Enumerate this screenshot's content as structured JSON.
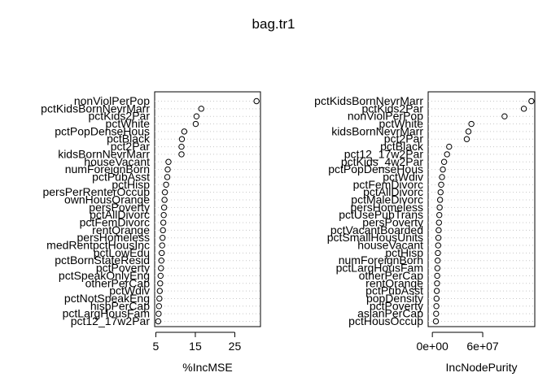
{
  "title": "bag.tr1",
  "chart_data": [
    {
      "type": "dotchart",
      "xlabel": "%IncMSE",
      "xlim": [
        4.7,
        31.5
      ],
      "xticks": [
        5,
        15,
        25
      ],
      "tick_labels": [
        "5",
        "15",
        "25"
      ],
      "grid": true,
      "categories": [
        "nonViolPerPop",
        "pctKidsBornNevrMarr",
        "pctKids2Par",
        "pctWhite",
        "pctPopDenseHous",
        "pctBlack",
        "pct2Par",
        "kidsBornNevrMarr",
        "houseVacant",
        "numForeignBorn",
        "pctPubAsst",
        "pctHisp",
        "persPerRenterOccup",
        "ownHousQrange",
        "persPoverty",
        "pctAllDivorc",
        "pctFemDivorc",
        "rentQrange",
        "persHomeless",
        "medRentpctHousInc",
        "pctLowEdu",
        "pctBornStateResid",
        "pctPoverty",
        "pctSpeakOnlyEng",
        "otherPerCap",
        "pctWdiv",
        "pctNotSpeakEng",
        "hispPerCap",
        "pctLargHousFam",
        "pct12_17w2Par"
      ],
      "values": [
        30.5,
        16.5,
        15.3,
        15.1,
        12.2,
        11.6,
        11.5,
        11.5,
        8.2,
        8.0,
        7.9,
        7.6,
        7.3,
        7.2,
        7.1,
        7.0,
        6.9,
        6.8,
        6.7,
        6.6,
        6.5,
        6.4,
        6.3,
        6.2,
        6.1,
        6.0,
        5.9,
        5.8,
        5.7,
        5.6
      ]
    },
    {
      "type": "dotchart",
      "xlabel": "IncNodePurity",
      "xlim": [
        -5000000.0,
        122000000.0
      ],
      "xticks": [
        0,
        60000000
      ],
      "tick_labels": [
        "0e+00",
        "6e+07"
      ],
      "grid": true,
      "categories": [
        "pctKidsBornNevrMarr",
        "pctKids2Par",
        "nonViolPerPop",
        "pctWhite",
        "kidsBornNevrMarr",
        "pct2Par",
        "pctBlack",
        "pct12_17w2Par",
        "pctKids_4w2Par",
        "pctPopDenseHous",
        "pctWdiv",
        "pctFemDivorc",
        "pctAllDivorc",
        "pctMaleDivorc",
        "persHomeless",
        "pctUsePubTrans",
        "persPoverty",
        "pctVacantBoarded",
        "pctSmallHousUnits",
        "houseVacant",
        "pctHisp",
        "numForeignBorn",
        "pctLargHousFam",
        "otherPerCap",
        "rentQrange",
        "pctPubAsst",
        "popDensity",
        "pctPoverty",
        "asianPerCap",
        "pctHousOccup"
      ],
      "values": [
        118000000,
        109000000,
        86000000,
        46500000,
        43000000,
        41000000,
        20000000,
        17500000,
        14000000,
        12500000,
        11500000,
        10500000,
        9800000,
        9200000,
        8700000,
        8300000,
        7900000,
        7500000,
        7200000,
        6900000,
        6600000,
        6300000,
        6000000,
        5800000,
        5600000,
        5300000,
        5000000,
        4800000,
        4500000,
        4200000
      ]
    }
  ]
}
